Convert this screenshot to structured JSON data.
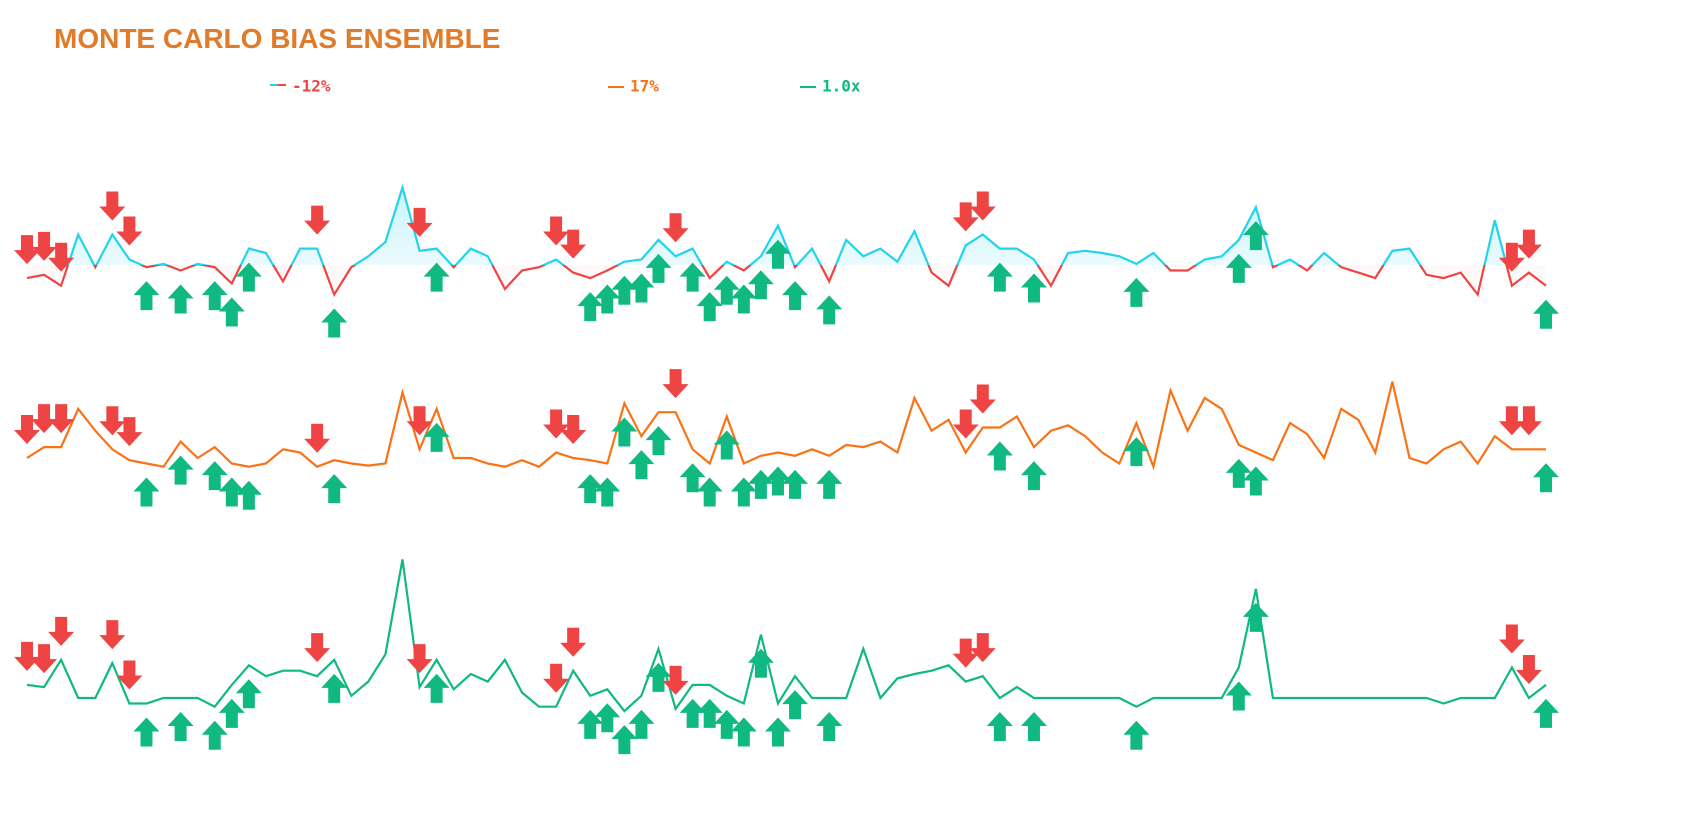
{
  "chart_data": {
    "type": "line",
    "title": "MONTE CARLO BIAS ENSEMBLE",
    "series": [
      {
        "name": "-12%",
        "color": "#22d3ee",
        "negative_color": "#ef4444",
        "values": [
          -12,
          -9,
          -19,
          28,
          -2,
          28,
          5,
          -2,
          1,
          -5,
          1,
          -2,
          -17,
          15,
          11,
          -15,
          15,
          15,
          -27,
          -2,
          8,
          21,
          71,
          13,
          15,
          -2,
          15,
          8,
          -22,
          -5,
          -2,
          5,
          -7,
          -12,
          -5,
          3,
          5,
          23,
          8,
          15,
          -12,
          3,
          -5,
          8,
          36,
          -2,
          15,
          -15,
          23,
          8,
          15,
          3,
          31,
          -7,
          -19,
          18,
          28,
          15,
          15,
          5,
          -19,
          11,
          13,
          11,
          8,
          1,
          11,
          -5,
          -5,
          5,
          8,
          23,
          53,
          -2,
          5,
          -5,
          11,
          -2,
          -7,
          -12,
          13,
          15,
          -9,
          -12,
          -7,
          -27,
          41,
          -19,
          -7,
          -19
        ]
      },
      {
        "name": "17%",
        "color": "#f97316",
        "values": [
          0,
          10,
          10,
          45,
          25,
          8,
          -2,
          -5,
          -8,
          15,
          0,
          10,
          -5,
          -8,
          -5,
          8,
          5,
          -8,
          -2,
          -5,
          -7,
          -5,
          60,
          8,
          45,
          0,
          0,
          -5,
          -8,
          -2,
          -8,
          5,
          0,
          -2,
          -5,
          50,
          20,
          42,
          42,
          8,
          -5,
          38,
          -5,
          2,
          5,
          2,
          8,
          2,
          12,
          10,
          15,
          5,
          55,
          25,
          35,
          5,
          28,
          28,
          38,
          10,
          25,
          30,
          20,
          5,
          -5,
          32,
          -8,
          62,
          25,
          55,
          45,
          12,
          5,
          -2,
          32,
          22,
          0,
          45,
          35,
          5,
          70,
          0,
          -5,
          8,
          15,
          -5,
          20,
          8,
          8,
          8
        ]
      },
      {
        "name": "1.0x",
        "color": "#10b981",
        "values": [
          12,
          10,
          35,
          0,
          0,
          32,
          -5,
          -5,
          0,
          0,
          0,
          -8,
          12,
          30,
          20,
          25,
          25,
          20,
          35,
          2,
          15,
          40,
          127,
          10,
          35,
          8,
          22,
          15,
          35,
          5,
          -8,
          -8,
          25,
          2,
          8,
          -12,
          2,
          45,
          -10,
          12,
          12,
          2,
          -5,
          58,
          -5,
          20,
          0,
          0,
          0,
          45,
          0,
          18,
          22,
          25,
          30,
          15,
          20,
          0,
          10,
          0,
          0,
          0,
          0,
          0,
          0,
          -8,
          0,
          0,
          0,
          0,
          0,
          28,
          100,
          0,
          0,
          0,
          0,
          0,
          0,
          0,
          0,
          0,
          0,
          -5,
          0,
          0,
          0,
          28,
          0,
          12
        ]
      }
    ],
    "signals": {
      "up_color": "#10b981",
      "down_color": "#ef4444",
      "up": [
        7,
        9,
        11,
        12,
        13,
        18,
        24,
        33,
        34,
        35,
        36,
        37,
        39,
        40,
        41,
        42,
        43,
        44,
        45,
        47,
        57,
        59,
        65,
        71,
        72,
        89
      ],
      "down": [
        0,
        1,
        2,
        5,
        6,
        17,
        23,
        31,
        32,
        38,
        55,
        56,
        87,
        88
      ]
    }
  }
}
